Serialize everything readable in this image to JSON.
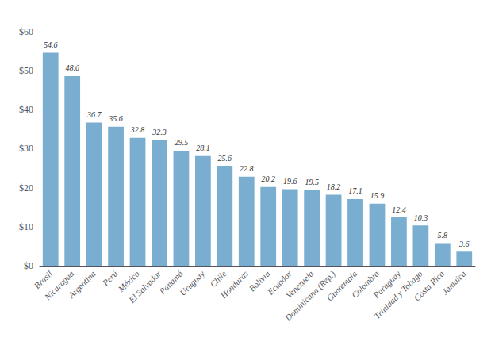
{
  "chart_data": {
    "type": "bar",
    "categories": [
      "Brasil",
      "Nicaragua",
      "Argentina",
      "Perú",
      "México",
      "El Salvador",
      "Panamá",
      "Uruguay",
      "Chile",
      "Honduras",
      "Bolivia",
      "Ecuador",
      "Venezuela",
      "Dominicana (Rep.)",
      "Guatemala",
      "Colombia",
      "Paraguay",
      "Trinidad y Tobago",
      "Costa Rica",
      "Jamaica"
    ],
    "values": [
      54.6,
      48.6,
      36.7,
      35.6,
      32.8,
      32.3,
      29.5,
      28.1,
      25.6,
      22.8,
      20.2,
      19.6,
      19.5,
      18.2,
      17.1,
      15.9,
      12.4,
      10.3,
      5.8,
      3.6
    ],
    "color": "#7aaed0",
    "ylim": [
      0,
      62
    ],
    "yticks": [
      {
        "value": 0,
        "label": "$0"
      },
      {
        "value": 10,
        "label": "$10"
      },
      {
        "value": 20,
        "label": "$20"
      },
      {
        "value": 30,
        "label": "$30"
      },
      {
        "value": 40,
        "label": "$40"
      },
      {
        "value": 50,
        "label": "$50"
      },
      {
        "value": 60,
        "label": "$60"
      }
    ],
    "grid": false,
    "data_labels": true
  }
}
